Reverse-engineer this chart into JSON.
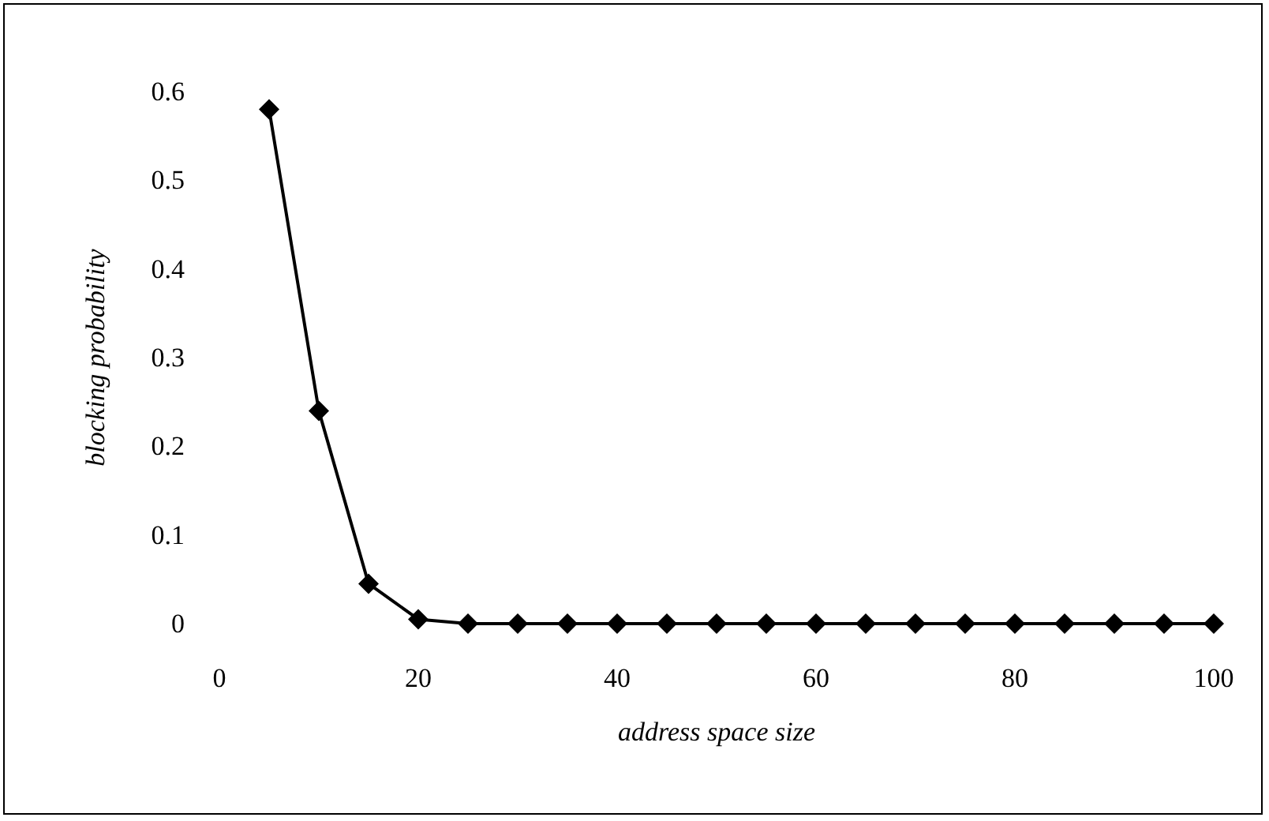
{
  "chart_data": {
    "type": "line",
    "xlabel": "address space size",
    "ylabel": "blocking probability",
    "x": [
      5,
      10,
      15,
      20,
      25,
      30,
      35,
      40,
      45,
      50,
      55,
      60,
      65,
      70,
      75,
      80,
      85,
      90,
      95,
      100
    ],
    "series": [
      {
        "color": "#000000",
        "values": [
          0.58,
          0.24,
          0.045,
          0.005,
          0,
          0,
          0,
          0,
          0,
          0,
          0,
          0,
          0,
          0,
          0,
          0,
          0,
          0,
          0,
          0
        ]
      }
    ],
    "xlim": [
      0,
      100
    ],
    "xticks": [
      0,
      20,
      40,
      60,
      80,
      100
    ],
    "ylim": [
      0,
      0.6
    ],
    "yticks": [
      0,
      0.1,
      0.2,
      0.3,
      0.4,
      0.5,
      0.6
    ],
    "grid": false,
    "marker": "diamond",
    "line_style": "solid"
  }
}
